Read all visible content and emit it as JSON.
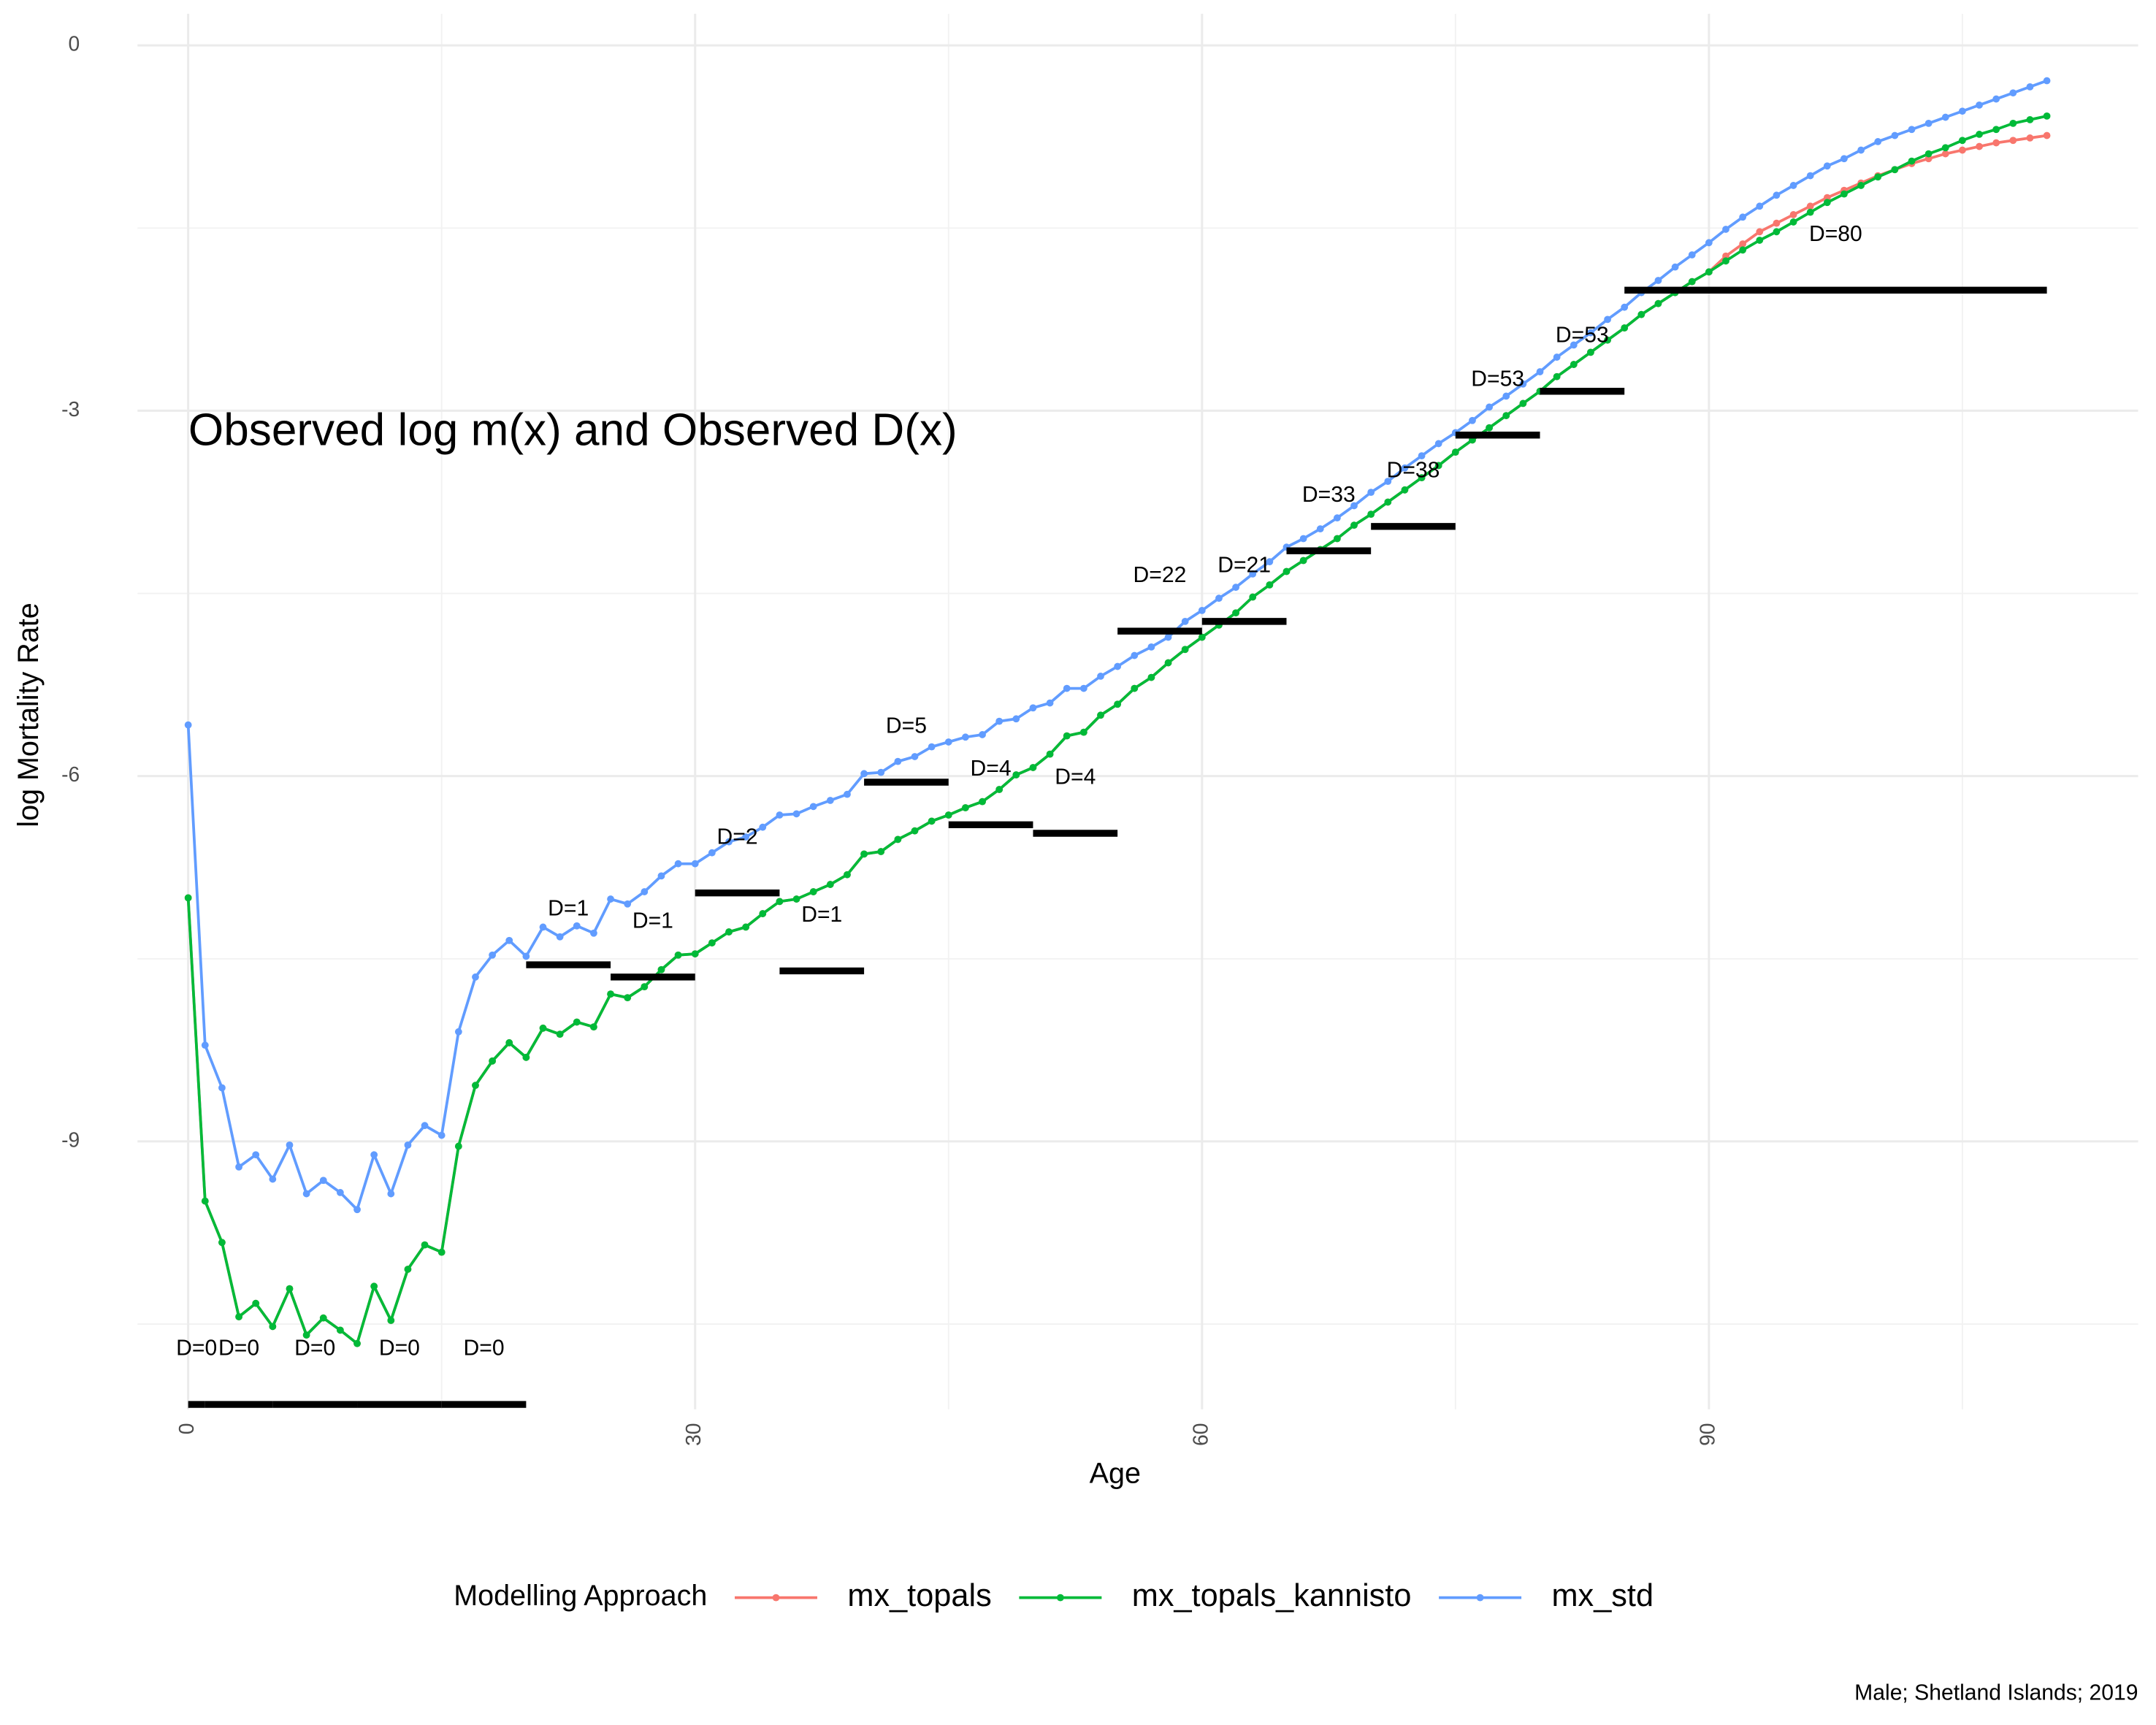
{
  "chart_data": {
    "type": "line",
    "annotation": "Observed log m(x) and Observed D(x)",
    "x_label": "Age",
    "y_label": "log Mortality Rate",
    "caption": "Male; Shetland Islands; 2019",
    "legend_title": "Modelling Approach",
    "legend_position": "bottom",
    "grid": true,
    "xlim": [
      -3,
      115.4
    ],
    "ylim": [
      -11.2,
      0.26
    ],
    "xticks": [
      0,
      30,
      60,
      90
    ],
    "yticks": [
      0,
      -3,
      -6,
      -9
    ],
    "x": [
      0,
      1,
      2,
      3,
      4,
      5,
      6,
      7,
      8,
      9,
      10,
      11,
      12,
      13,
      14,
      15,
      16,
      17,
      18,
      19,
      20,
      21,
      22,
      23,
      24,
      25,
      26,
      27,
      28,
      29,
      30,
      31,
      32,
      33,
      34,
      35,
      36,
      37,
      38,
      39,
      40,
      41,
      42,
      43,
      44,
      45,
      46,
      47,
      48,
      49,
      50,
      51,
      52,
      53,
      54,
      55,
      56,
      57,
      58,
      59,
      60,
      61,
      62,
      63,
      64,
      65,
      66,
      67,
      68,
      69,
      70,
      71,
      72,
      73,
      74,
      75,
      76,
      77,
      78,
      79,
      80,
      81,
      82,
      83,
      84,
      85,
      86,
      87,
      88,
      89,
      90,
      91,
      92,
      93,
      94,
      95,
      96,
      97,
      98,
      99,
      100,
      101,
      102,
      103,
      104,
      105,
      106,
      107,
      108,
      109,
      110
    ],
    "series": [
      {
        "name": "mx_topals",
        "color": "#F8766D",
        "values": [
          -7.0,
          -9.49,
          -9.83,
          -10.44,
          -10.33,
          -10.52,
          -10.21,
          -10.59,
          -10.45,
          -10.55,
          -10.66,
          -10.19,
          -10.47,
          -10.05,
          -9.85,
          -9.91,
          -9.04,
          -8.54,
          -8.34,
          -8.19,
          -8.31,
          -8.07,
          -8.12,
          -8.02,
          -8.06,
          -7.79,
          -7.82,
          -7.73,
          -7.59,
          -7.47,
          -7.46,
          -7.37,
          -7.28,
          -7.24,
          -7.13,
          -7.03,
          -7.01,
          -6.95,
          -6.89,
          -6.81,
          -6.64,
          -6.62,
          -6.52,
          -6.45,
          -6.37,
          -6.32,
          -6.26,
          -6.21,
          -6.11,
          -5.99,
          -5.93,
          -5.82,
          -5.67,
          -5.64,
          -5.5,
          -5.41,
          -5.28,
          -5.19,
          -5.07,
          -4.96,
          -4.86,
          -4.76,
          -4.66,
          -4.53,
          -4.43,
          -4.32,
          -4.23,
          -4.14,
          -4.05,
          -3.94,
          -3.85,
          -3.75,
          -3.65,
          -3.55,
          -3.45,
          -3.34,
          -3.24,
          -3.14,
          -3.04,
          -2.94,
          -2.84,
          -2.72,
          -2.62,
          -2.52,
          -2.42,
          -2.32,
          -2.21,
          -2.12,
          -2.03,
          -1.94,
          -1.86,
          -1.73,
          -1.63,
          -1.53,
          -1.46,
          -1.39,
          -1.32,
          -1.25,
          -1.19,
          -1.13,
          -1.07,
          -1.02,
          -0.97,
          -0.93,
          -0.89,
          -0.86,
          -0.83,
          -0.8,
          -0.78,
          -0.76,
          -0.74
        ]
      },
      {
        "name": "mx_topals_kannisto",
        "color": "#00BA38",
        "values": [
          -7.0,
          -9.49,
          -9.83,
          -10.44,
          -10.33,
          -10.52,
          -10.21,
          -10.59,
          -10.45,
          -10.55,
          -10.66,
          -10.19,
          -10.47,
          -10.05,
          -9.85,
          -9.91,
          -9.04,
          -8.54,
          -8.34,
          -8.19,
          -8.31,
          -8.07,
          -8.12,
          -8.02,
          -8.06,
          -7.79,
          -7.82,
          -7.73,
          -7.59,
          -7.47,
          -7.46,
          -7.37,
          -7.28,
          -7.24,
          -7.13,
          -7.03,
          -7.01,
          -6.95,
          -6.89,
          -6.81,
          -6.64,
          -6.62,
          -6.52,
          -6.45,
          -6.37,
          -6.32,
          -6.26,
          -6.21,
          -6.11,
          -5.99,
          -5.93,
          -5.82,
          -5.67,
          -5.64,
          -5.5,
          -5.41,
          -5.28,
          -5.19,
          -5.07,
          -4.96,
          -4.86,
          -4.76,
          -4.66,
          -4.53,
          -4.43,
          -4.32,
          -4.23,
          -4.14,
          -4.05,
          -3.94,
          -3.85,
          -3.75,
          -3.65,
          -3.55,
          -3.45,
          -3.34,
          -3.24,
          -3.14,
          -3.04,
          -2.94,
          -2.84,
          -2.72,
          -2.62,
          -2.52,
          -2.42,
          -2.32,
          -2.21,
          -2.12,
          -2.03,
          -1.94,
          -1.86,
          -1.77,
          -1.68,
          -1.6,
          -1.53,
          -1.45,
          -1.37,
          -1.29,
          -1.22,
          -1.15,
          -1.08,
          -1.02,
          -0.95,
          -0.89,
          -0.84,
          -0.78,
          -0.73,
          -0.69,
          -0.64,
          -0.61,
          -0.58
        ]
      },
      {
        "name": "mx_std",
        "color": "#619CFF",
        "values": [
          -5.58,
          -8.21,
          -8.56,
          -9.21,
          -9.11,
          -9.31,
          -9.03,
          -9.43,
          -9.32,
          -9.42,
          -9.56,
          -9.11,
          -9.43,
          -9.03,
          -8.87,
          -8.95,
          -8.1,
          -7.65,
          -7.47,
          -7.35,
          -7.48,
          -7.24,
          -7.32,
          -7.23,
          -7.29,
          -7.01,
          -7.05,
          -6.95,
          -6.82,
          -6.72,
          -6.72,
          -6.63,
          -6.54,
          -6.5,
          -6.42,
          -6.32,
          -6.31,
          -6.25,
          -6.2,
          -6.15,
          -5.98,
          -5.97,
          -5.88,
          -5.84,
          -5.76,
          -5.72,
          -5.68,
          -5.66,
          -5.55,
          -5.53,
          -5.44,
          -5.4,
          -5.28,
          -5.28,
          -5.18,
          -5.1,
          -5.01,
          -4.94,
          -4.86,
          -4.73,
          -4.64,
          -4.54,
          -4.45,
          -4.34,
          -4.24,
          -4.12,
          -4.05,
          -3.97,
          -3.88,
          -3.78,
          -3.67,
          -3.58,
          -3.47,
          -3.37,
          -3.27,
          -3.18,
          -3.08,
          -2.97,
          -2.88,
          -2.78,
          -2.68,
          -2.56,
          -2.46,
          -2.36,
          -2.25,
          -2.15,
          -2.03,
          -1.93,
          -1.82,
          -1.72,
          -1.62,
          -1.51,
          -1.41,
          -1.32,
          -1.23,
          -1.15,
          -1.07,
          -0.99,
          -0.93,
          -0.86,
          -0.79,
          -0.74,
          -0.69,
          -0.64,
          -0.59,
          -0.54,
          -0.49,
          -0.44,
          -0.39,
          -0.34,
          -0.29
        ]
      }
    ],
    "observed": {
      "color": "#000000",
      "age_start": [
        0,
        1,
        5,
        10,
        15,
        20,
        25,
        30,
        35,
        40,
        45,
        50,
        55,
        60,
        65,
        70,
        75,
        80,
        85
      ],
      "age_end": [
        1,
        5,
        10,
        15,
        20,
        25,
        30,
        35,
        40,
        45,
        50,
        55,
        60,
        65,
        70,
        75,
        80,
        85,
        110
      ],
      "values": [
        -11.16,
        -11.16,
        -11.16,
        -11.16,
        -11.16,
        -7.55,
        -7.65,
        -6.96,
        -7.6,
        -6.05,
        -6.4,
        -6.47,
        -4.81,
        -4.73,
        -4.15,
        -3.95,
        -3.2,
        -2.84,
        -2.01
      ],
      "labels": [
        "D=0",
        "D=0",
        "D=0",
        "D=0",
        "D=0",
        "D=1",
        "D=1",
        "D=2",
        "D=1",
        "D=5",
        "D=4",
        "D=4",
        "D=22",
        "D=21",
        "D=33",
        "D=38",
        "D=53",
        "D=53",
        "D=80"
      ]
    }
  }
}
